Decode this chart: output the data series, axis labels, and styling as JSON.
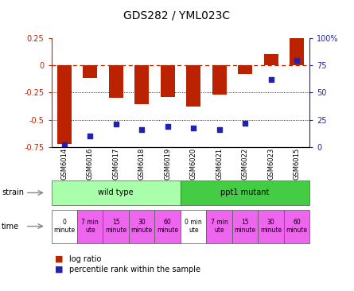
{
  "title": "GDS282 / YML023C",
  "samples": [
    "GSM6014",
    "GSM6016",
    "GSM6017",
    "GSM6018",
    "GSM6019",
    "GSM6020",
    "GSM6021",
    "GSM6022",
    "GSM6023",
    "GSM6015"
  ],
  "log_ratio": [
    -0.72,
    -0.12,
    -0.3,
    -0.36,
    -0.29,
    -0.38,
    -0.27,
    -0.08,
    0.1,
    0.25
  ],
  "percentile_rank": [
    2,
    10,
    21,
    16,
    19,
    17,
    16,
    22,
    62,
    79
  ],
  "ylim_left": [
    -0.75,
    0.25
  ],
  "ylim_right": [
    0,
    100
  ],
  "yticks_left": [
    0.25,
    0,
    -0.25,
    -0.5,
    -0.75
  ],
  "yticks_right": [
    100,
    75,
    50,
    25,
    0
  ],
  "bar_color": "#BB2200",
  "dot_color": "#2222AA",
  "dashed_color": "#BB2200",
  "tick_color_left": "#BB2200",
  "tick_color_right": "#2222AA",
  "strain_groups": [
    {
      "label": "wild type",
      "start": 0,
      "end": 5,
      "color": "#AAFFAA"
    },
    {
      "label": "ppt1 mutant",
      "start": 5,
      "end": 10,
      "color": "#44CC44"
    }
  ],
  "time_labels": [
    "0\nminute",
    "7 min\nute",
    "15\nminute",
    "30\nminute",
    "60\nminute",
    "0 min\nute",
    "7 min\nute",
    "15\nminute",
    "30\nminute",
    "60\nminute"
  ],
  "time_colors": [
    "#FFFFFF",
    "#EE66EE",
    "#EE66EE",
    "#EE66EE",
    "#EE66EE",
    "#FFFFFF",
    "#EE66EE",
    "#EE66EE",
    "#EE66EE",
    "#EE66EE"
  ],
  "legend_log_ratio": "log ratio",
  "legend_percentile": "percentile rank within the sample",
  "title_fontsize": 10,
  "ytick_fontsize": 7,
  "xtick_fontsize": 6,
  "annotation_fontsize": 7,
  "time_fontsize": 5.5,
  "legend_fontsize": 7
}
